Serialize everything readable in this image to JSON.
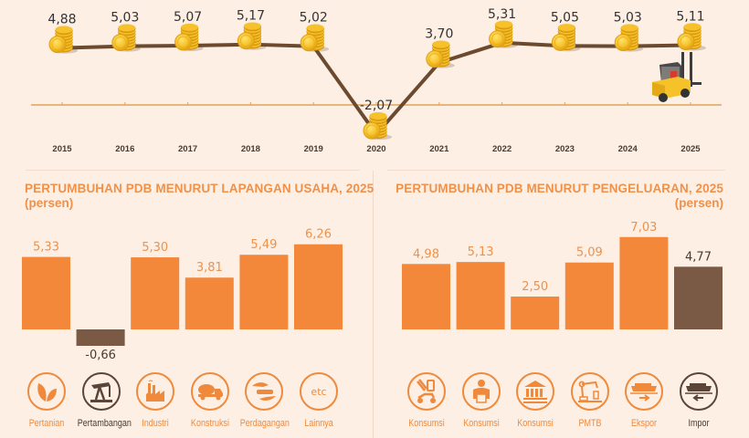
{
  "colors": {
    "background": "#fdefe4",
    "bar_orange": "#f4883a",
    "bar_brown": "#7a5a45",
    "line_brown": "#6b4a2f",
    "axis_gold": "#e0a45a",
    "coin_gold": "#f6c12a",
    "title_orange": "#f0914a",
    "label_dark": "#4a3a30"
  },
  "chart_data": [
    {
      "type": "line",
      "title": "",
      "xlabel": "",
      "ylabel": "",
      "x": [
        "2015",
        "2016",
        "2017",
        "2018",
        "2019",
        "2020",
        "2021",
        "2022",
        "2023",
        "2024",
        "2025"
      ],
      "values": [
        4.88,
        5.03,
        5.07,
        5.17,
        5.02,
        -2.07,
        3.7,
        5.31,
        5.05,
        5.03,
        5.11
      ],
      "value_labels": [
        "4,88",
        "5,03",
        "5,07",
        "5,17",
        "5,02",
        "-2,07",
        "3,70",
        "5,31",
        "5,05",
        "5,03",
        "5,11"
      ],
      "marker": "coin-stack",
      "ylim": [
        -3,
        6
      ],
      "grid": false,
      "baseline": 0
    },
    {
      "type": "bar",
      "title": "PERTUMBUHAN PDB MENURUT LAPANGAN USAHA, 2025",
      "subtitle": "(persen)",
      "categories": [
        "Pertanian",
        "Pertambangan",
        "Industri",
        "Konstruksi",
        "Perdagangan",
        "Lainnya"
      ],
      "values": [
        5.33,
        -0.66,
        5.3,
        3.81,
        5.49,
        6.26
      ],
      "value_labels": [
        "5,33",
        "-0,66",
        "5,30",
        "3,81",
        "5,49",
        "6,26"
      ],
      "highlight": [
        false,
        true,
        false,
        false,
        false,
        false
      ],
      "icons": [
        "leaves-icon",
        "oil-pump-icon",
        "factory-icon",
        "cement-truck-icon",
        "trade-hands-icon",
        "etc-icon"
      ],
      "ylim": [
        -1,
        7
      ],
      "grid": false
    },
    {
      "type": "bar",
      "title": "PERTUMBUHAN PDB MENURUT PENGELUARAN, 2025",
      "subtitle": "(persen)",
      "categories": [
        "Konsumsi",
        "Konsumsi",
        "Konsumsi",
        "PMTB",
        "Ekspor",
        "Impor"
      ],
      "values": [
        4.98,
        5.13,
        2.5,
        5.09,
        7.03,
        4.77
      ],
      "value_labels": [
        "4,98",
        "5,13",
        "2,50",
        "5,09",
        "7,03",
        "4,77"
      ],
      "highlight": [
        false,
        false,
        false,
        false,
        false,
        true
      ],
      "icons": [
        "household-consumption-icon",
        "person-icon",
        "government-building-icon",
        "robot-arm-icon",
        "ship-export-icon",
        "ship-import-icon"
      ],
      "ylim": [
        0,
        8
      ],
      "grid": false
    }
  ],
  "etc_label": "etc"
}
